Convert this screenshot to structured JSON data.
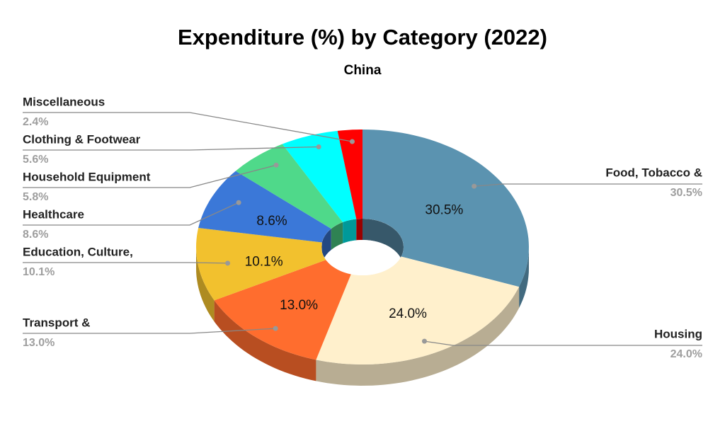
{
  "chart_data": {
    "type": "pie",
    "title": "Expenditure (%) by Category (2022)",
    "subtitle": "China",
    "categories": [
      "Food, Tobacco &",
      "Housing",
      "Transport &",
      "Education, Culture,",
      "Healthcare",
      "Household Equipment",
      "Clothing & Footwear",
      "Miscellaneous"
    ],
    "values": [
      30.5,
      24.0,
      13.0,
      10.1,
      8.6,
      5.8,
      5.6,
      2.4
    ],
    "value_labels": [
      "30.5%",
      "24.0%",
      "13.0%",
      "10.1%",
      "8.6%",
      "5.8%",
      "5.6%",
      "2.4%"
    ],
    "colors": [
      "#5b93b0",
      "#fff0cc",
      "#ff6d2e",
      "#f2c12e",
      "#3b78d8",
      "#4fd98a",
      "#00ffff",
      "#ff0000"
    ],
    "donut": true,
    "three_d": true
  }
}
